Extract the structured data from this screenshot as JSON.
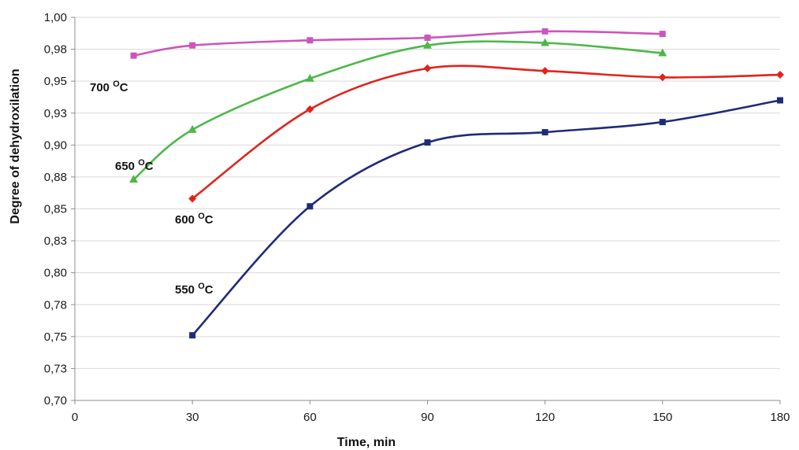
{
  "chart_data": {
    "type": "line",
    "xlabel": "Time, min",
    "ylabel": "Degree of dehydroxilation",
    "xlim": [
      0,
      180
    ],
    "ylim": [
      0.7,
      1.0
    ],
    "x_ticks": [
      "0",
      "30",
      "60",
      "90",
      "120",
      "150",
      "180"
    ],
    "y_ticks": [
      "0,70",
      "0,73",
      "0,75",
      "0,78",
      "0,80",
      "0,83",
      "0,85",
      "0,88",
      "0,90",
      "0,93",
      "0,95",
      "0,98",
      "1,00"
    ],
    "grid": "horizontal",
    "series": [
      {
        "name": "550 OC",
        "temp": "550",
        "unit_sup": "O",
        "unit": "C",
        "color": "#1f2a7a",
        "marker": "square",
        "x": [
          30,
          60,
          90,
          120,
          150,
          180
        ],
        "y": [
          0.751,
          0.852,
          0.902,
          0.91,
          0.918,
          0.935
        ]
      },
      {
        "name": "600 OC",
        "temp": "600",
        "unit_sup": "O",
        "unit": "C",
        "color": "#e0241b",
        "marker": "diamond",
        "x": [
          30,
          60,
          90,
          120,
          150,
          180
        ],
        "y": [
          0.858,
          0.928,
          0.96,
          0.958,
          0.953,
          0.955
        ]
      },
      {
        "name": "650 OC",
        "temp": "650",
        "unit_sup": "O",
        "unit": "C",
        "color": "#4db848",
        "marker": "triangle",
        "x": [
          15,
          30,
          60,
          90,
          120,
          150
        ],
        "y": [
          0.873,
          0.912,
          0.952,
          0.978,
          0.98,
          0.972
        ]
      },
      {
        "name": "700 OC",
        "temp": "700",
        "unit_sup": "O",
        "unit": "C",
        "color": "#cc55bb",
        "marker": "square",
        "x": [
          15,
          30,
          60,
          90,
          120,
          150
        ],
        "y": [
          0.97,
          0.978,
          0.982,
          0.984,
          0.989,
          0.987
        ]
      }
    ]
  }
}
